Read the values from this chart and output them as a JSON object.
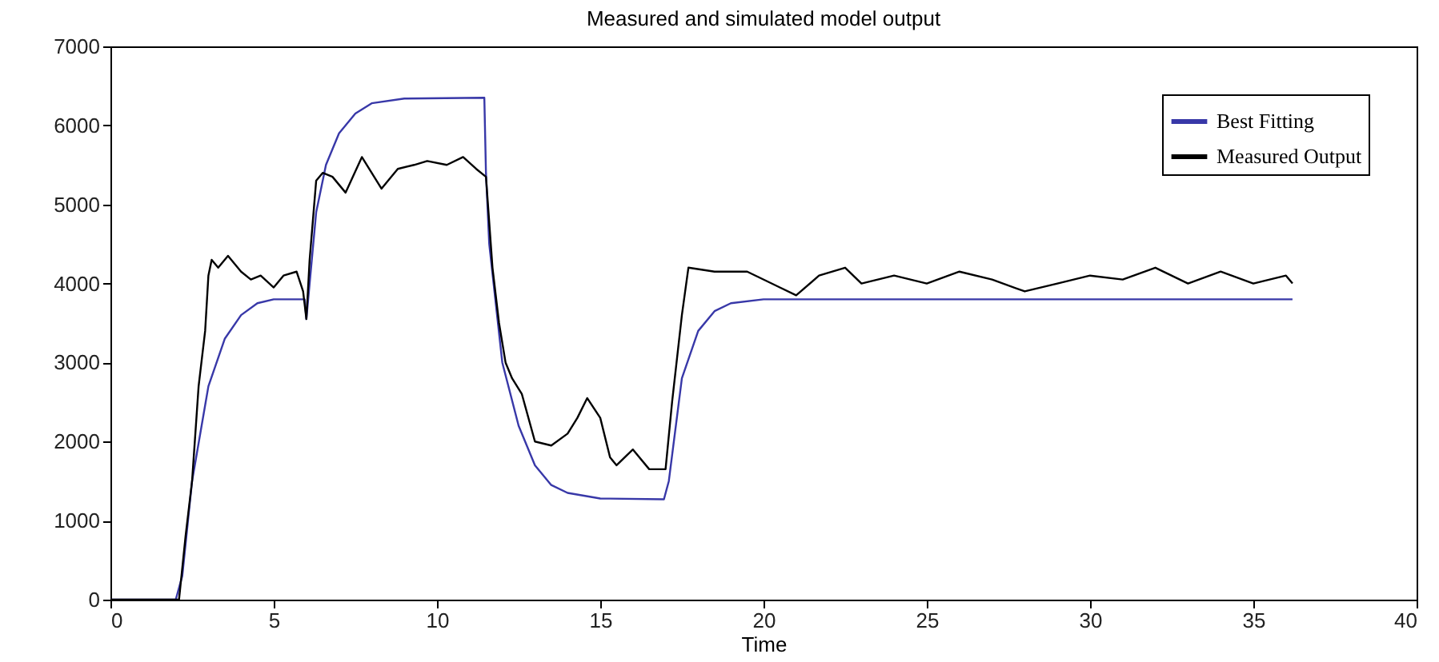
{
  "chart_data": {
    "type": "line",
    "title": "Measured and simulated model output",
    "xlabel": "Time",
    "xlim": [
      0,
      40
    ],
    "xticks": [
      0,
      5,
      10,
      15,
      20,
      25,
      30,
      35,
      40
    ],
    "ylim": [
      0,
      7000
    ],
    "yticks": [
      0,
      1000,
      2000,
      3000,
      4000,
      5000,
      6000,
      7000
    ],
    "grid": false,
    "legend": "top right",
    "series": [
      {
        "name": "Best Fitting",
        "color": "#3838a8",
        "x": [
          0,
          2,
          2.2,
          2.5,
          3,
          3.5,
          4,
          4.5,
          5,
          5.95,
          6,
          6.3,
          6.6,
          7,
          7.5,
          8,
          9,
          11.45,
          11.5,
          11.6,
          12,
          12.5,
          13,
          13.5,
          14,
          15,
          16.95,
          17.1,
          17.5,
          18,
          18.5,
          19,
          20,
          36.2
        ],
        "values": [
          0,
          0,
          300,
          1500,
          2700,
          3300,
          3600,
          3750,
          3800,
          3800,
          3550,
          4900,
          5500,
          5900,
          6150,
          6280,
          6340,
          6350,
          5400,
          4500,
          3000,
          2200,
          1700,
          1450,
          1350,
          1280,
          1270,
          1500,
          2800,
          3400,
          3650,
          3750,
          3800,
          3800
        ]
      },
      {
        "name": "Measured Output",
        "color": "#000000",
        "x": [
          0,
          2,
          2.1,
          2.3,
          2.5,
          2.7,
          2.9,
          3,
          3.1,
          3.3,
          3.6,
          4,
          4.3,
          4.6,
          5,
          5.3,
          5.7,
          5.9,
          6,
          6.1,
          6.3,
          6.5,
          6.8,
          7.2,
          7.7,
          8.3,
          8.8,
          9.3,
          9.7,
          10.3,
          10.8,
          11.2,
          11.5,
          11.7,
          11.9,
          12.1,
          12.3,
          12.6,
          13,
          13.5,
          14,
          14.3,
          14.6,
          15,
          15.3,
          15.5,
          16,
          16.5,
          17,
          17.2,
          17.5,
          17.7,
          18.5,
          19.5,
          20.5,
          21,
          21.7,
          22.5,
          23,
          24,
          25,
          26,
          27,
          28,
          29,
          30,
          31,
          32,
          33,
          34,
          35,
          36,
          36.2
        ],
        "values": [
          0,
          0,
          0,
          800,
          1500,
          2700,
          3400,
          4100,
          4300,
          4200,
          4350,
          4150,
          4050,
          4100,
          3950,
          4100,
          4150,
          3900,
          3550,
          4300,
          5300,
          5400,
          5350,
          5150,
          5600,
          5200,
          5450,
          5500,
          5550,
          5500,
          5600,
          5450,
          5350,
          4200,
          3500,
          3000,
          2800,
          2600,
          2000,
          1950,
          2100,
          2300,
          2550,
          2300,
          1800,
          1700,
          1900,
          1650,
          1650,
          2500,
          3600,
          4200,
          4150,
          4150,
          3950,
          3850,
          4100,
          4200,
          4000,
          4100,
          4000,
          4150,
          4050,
          3900,
          4000,
          4100,
          4050,
          4200,
          4000,
          4150,
          4000,
          4100,
          4000
        ]
      }
    ]
  }
}
